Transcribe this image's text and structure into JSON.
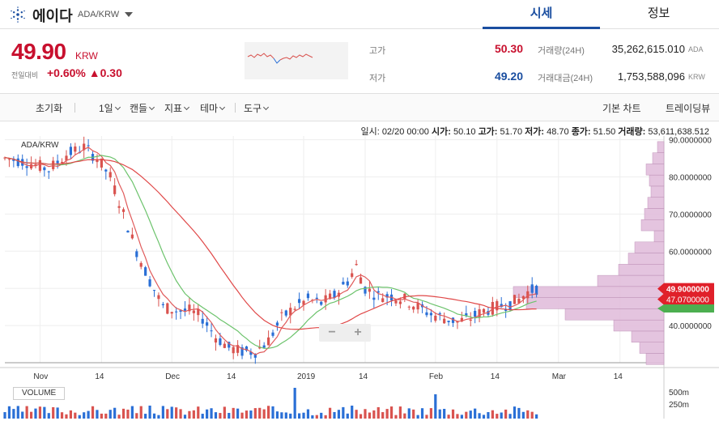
{
  "header": {
    "coin_name": "에이다",
    "pair": "ADA/KRW",
    "tabs": [
      {
        "label": "시세"
      },
      {
        "label": "정보"
      }
    ]
  },
  "summary": {
    "price": "49.90",
    "price_unit": "KRW",
    "change_label": "전일대비",
    "change_pct": "+0.60%",
    "change_abs": "▲0.30",
    "high_label": "고가",
    "high": "50.30",
    "low_label": "저가",
    "low": "49.20",
    "volume_label": "거래량(24H)",
    "volume": "35,262,615.010",
    "volume_unit": "ADA",
    "value_label": "거래대금(24H)",
    "value": "1,753,588,096",
    "value_unit": "KRW"
  },
  "toolbar": {
    "reset": "초기화",
    "interval": "1일",
    "candle": "캔들",
    "indicator": "지표",
    "theme": "테마",
    "tools": "도구",
    "basic_chart": "기본 차트",
    "trading_view": "트레이딩뷰"
  },
  "chart_info": {
    "date_label": "일시:",
    "date": "02/20 00:00",
    "open_label": "시가:",
    "open": "50.10",
    "high_label": "고가:",
    "high": "51.70",
    "low_label": "저가:",
    "low": "48.70",
    "close_label": "종가:",
    "close": "51.50",
    "vol_label": "거래량:",
    "vol": "53,611,638.512"
  },
  "chart_data": {
    "type": "candlestick",
    "symbol": "ADA/KRW",
    "ylim": [
      30,
      91
    ],
    "y_ticks": [
      "90.0000000",
      "80.0000000",
      "70.0000000",
      "60.0000000",
      "40.0000000"
    ],
    "x_ticks": [
      "Nov",
      "14",
      "Dec",
      "14",
      "2019",
      "14",
      "Feb",
      "14",
      "Mar",
      "14"
    ],
    "current_price_label": "49.9000000",
    "ma_price_label": "47.0700000",
    "close_trend": [
      [
        0,
        85
      ],
      [
        5,
        84
      ],
      [
        10,
        82
      ],
      [
        14,
        86
      ],
      [
        18,
        88
      ],
      [
        21,
        85
      ],
      [
        24,
        80
      ],
      [
        27,
        70
      ],
      [
        30,
        60
      ],
      [
        33,
        52
      ],
      [
        36,
        45
      ],
      [
        39,
        44
      ],
      [
        42,
        44
      ],
      [
        45,
        42
      ],
      [
        48,
        37
      ],
      [
        51,
        34
      ],
      [
        54,
        33
      ],
      [
        57,
        33
      ],
      [
        60,
        36
      ],
      [
        63,
        42
      ],
      [
        66,
        45
      ],
      [
        69,
        47
      ],
      [
        72,
        46
      ],
      [
        75,
        48
      ],
      [
        78,
        52
      ],
      [
        80,
        56
      ],
      [
        82,
        50
      ],
      [
        85,
        48
      ],
      [
        88,
        48
      ],
      [
        91,
        47
      ],
      [
        94,
        45
      ],
      [
        97,
        43
      ],
      [
        100,
        42
      ],
      [
        103,
        41
      ],
      [
        106,
        42
      ],
      [
        109,
        44
      ],
      [
        112,
        45
      ],
      [
        115,
        46
      ],
      [
        117,
        47
      ],
      [
        119,
        49
      ],
      [
        121,
        50
      ]
    ],
    "volume_label": "VOLUME",
    "volume_ticks": [
      "500m",
      "250m"
    ]
  }
}
